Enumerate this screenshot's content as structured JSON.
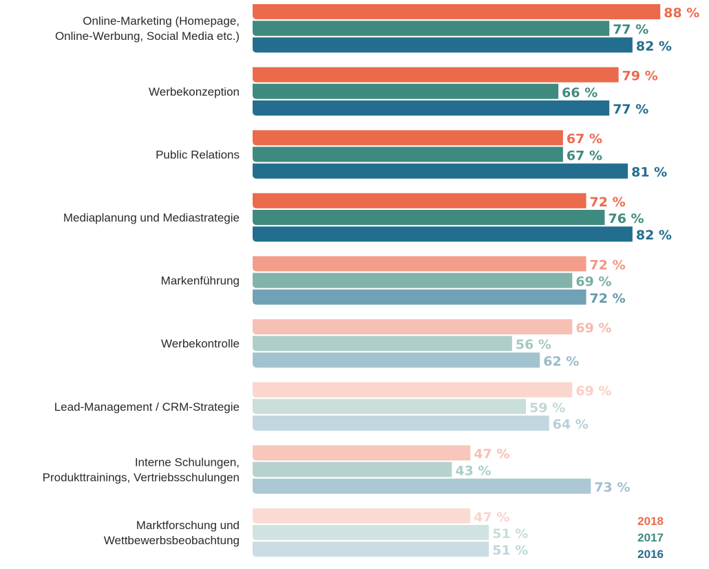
{
  "chart_data": {
    "type": "bar",
    "orientation": "horizontal",
    "categories": [
      [
        "Online-Marketing (Homepage,",
        "Online-Werbung, Social Media etc.)"
      ],
      [
        "Werbekonzeption"
      ],
      [
        "Public Relations"
      ],
      [
        "Mediaplanung und Mediastrategie"
      ],
      [
        "Markenführung"
      ],
      [
        "Werbekontrolle"
      ],
      [
        "Lead-Management / CRM-Strategie"
      ],
      [
        "Interne Schulungen,",
        "Produkttrainings, Vertriebsschulungen"
      ],
      [
        "Marktforschung und",
        "Wettbewerbsbeobachtung"
      ]
    ],
    "series": [
      {
        "name": "2018",
        "color": "#ec6a4c",
        "values": [
          88,
          79,
          67,
          72,
          72,
          69,
          69,
          47,
          47
        ]
      },
      {
        "name": "2017",
        "color": "#3f8a7e",
        "values": [
          77,
          66,
          67,
          76,
          69,
          56,
          59,
          43,
          51
        ]
      },
      {
        "name": "2016",
        "color": "#236e8e",
        "values": [
          82,
          77,
          81,
          82,
          72,
          62,
          64,
          73,
          51
        ]
      }
    ],
    "value_suffix": " %",
    "xlim": [
      0,
      90
    ],
    "grid": false,
    "legend_placement": "bottom-right",
    "category_emphasis": [
      1,
      1,
      1,
      1,
      0.65,
      0.42,
      0.28,
      0.38,
      0.24
    ]
  }
}
